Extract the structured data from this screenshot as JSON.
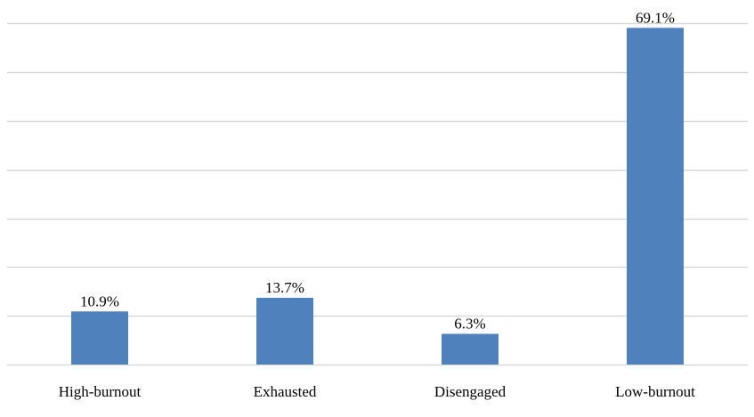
{
  "chart_data": {
    "type": "bar",
    "categories": [
      "High-burnout",
      "Exhausted",
      "Disengaged",
      "Low-burnout"
    ],
    "values": [
      10.9,
      13.7,
      6.3,
      69.1
    ],
    "data_labels": [
      "10.9%",
      "13.7%",
      "6.3%",
      "69.1%"
    ],
    "title": "",
    "xlabel": "",
    "ylabel": "",
    "ylim": [
      0,
      70
    ],
    "grid": true,
    "legend": "none",
    "bar_color": "#4f81bd",
    "grid_color": "#d9d9d9"
  }
}
